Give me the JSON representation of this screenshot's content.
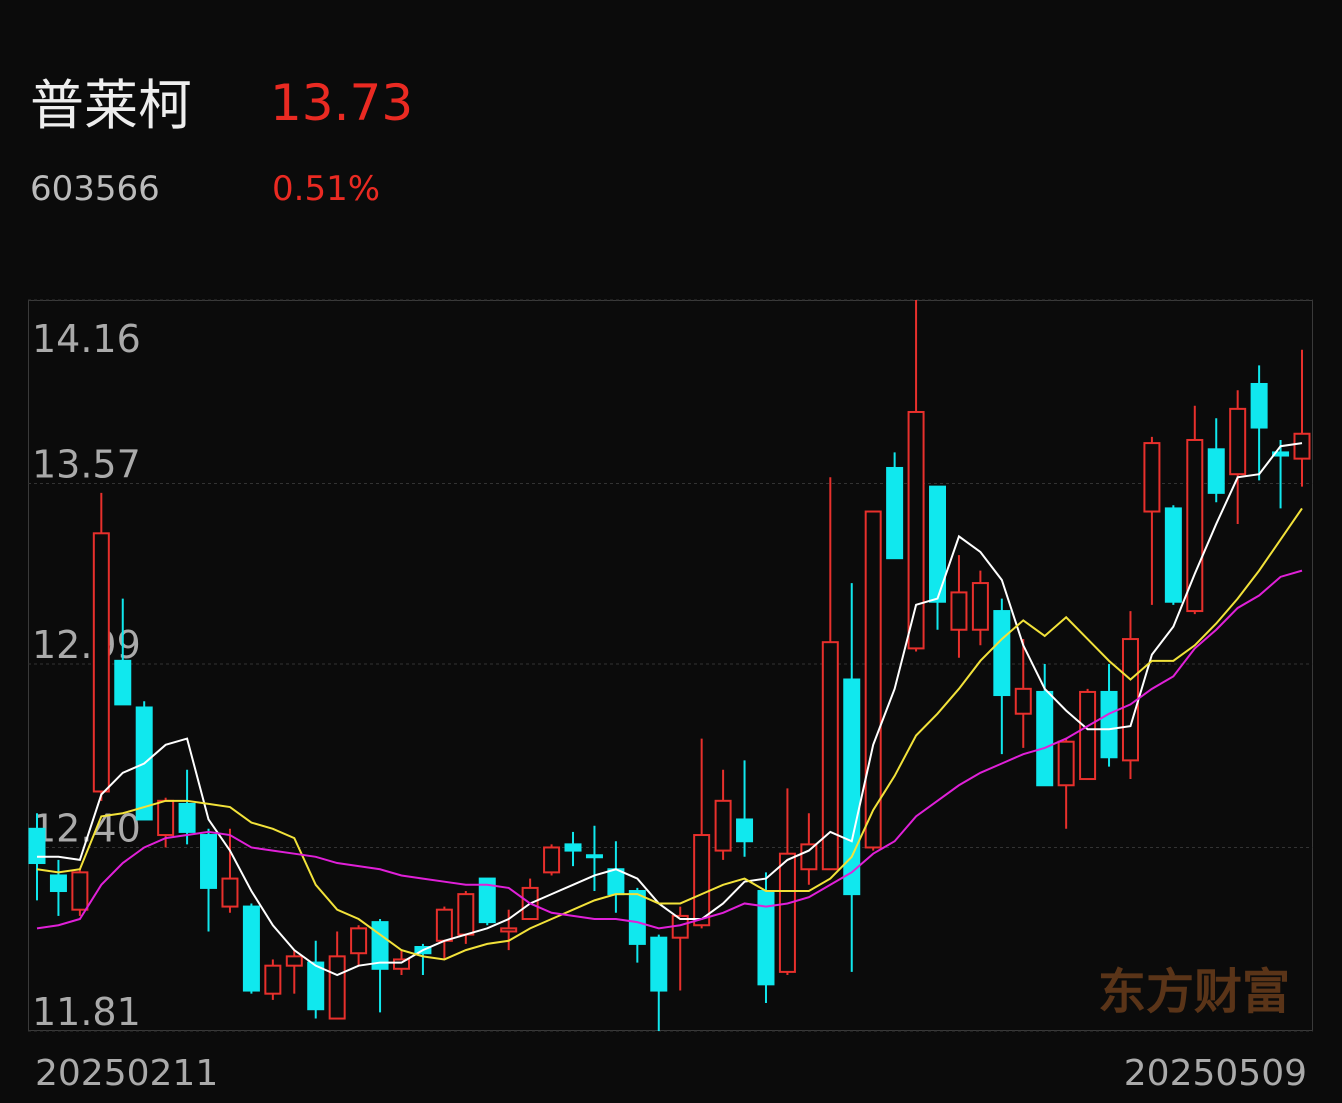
{
  "header": {
    "name": "普莱柯",
    "price": "13.73",
    "code": "603566",
    "change": "0.51%"
  },
  "chart_data": {
    "type": "candlestick",
    "categories": [
      "20250211",
      null,
      null,
      null,
      null,
      null,
      null,
      null,
      null,
      null,
      null,
      null,
      null,
      null,
      null,
      null,
      null,
      null,
      null,
      null,
      null,
      null,
      null,
      null,
      null,
      null,
      null,
      null,
      null,
      null,
      null,
      null,
      null,
      null,
      null,
      null,
      null,
      null,
      null,
      null,
      null,
      null,
      null,
      null,
      null,
      null,
      null,
      null,
      null,
      null,
      null,
      null,
      null,
      null,
      null,
      null,
      null,
      null,
      null,
      "20250509"
    ],
    "open": [
      12.46,
      12.31,
      12.2,
      12.58,
      13.0,
      12.85,
      12.44,
      12.54,
      12.44,
      12.21,
      12.21,
      11.93,
      12.02,
      12.03,
      11.85,
      12.06,
      12.16,
      12.01,
      12.08,
      12.1,
      12.12,
      12.3,
      12.13,
      12.17,
      12.32,
      12.41,
      12.375,
      12.33,
      12.26,
      12.11,
      12.11,
      12.15,
      12.39,
      12.49,
      12.26,
      12.0,
      12.33,
      12.33,
      12.94,
      12.4,
      13.62,
      13.04,
      13.56,
      13.1,
      13.1,
      13.16,
      12.83,
      12.9,
      12.6,
      12.62,
      12.9,
      12.68,
      13.48,
      13.49,
      13.16,
      13.68,
      13.6,
      13.89,
      13.67,
      13.65
    ],
    "high": [
      12.51,
      12.36,
      12.33,
      13.54,
      13.2,
      12.87,
      12.56,
      12.65,
      12.46,
      12.46,
      12.22,
      12.04,
      12.07,
      12.1,
      12.13,
      12.15,
      12.17,
      12.07,
      12.09,
      12.21,
      12.26,
      12.3,
      12.2,
      12.3,
      12.41,
      12.45,
      12.47,
      12.42,
      12.27,
      12.12,
      12.21,
      12.75,
      12.65,
      12.68,
      12.32,
      12.59,
      12.51,
      13.59,
      13.25,
      13.48,
      13.67,
      14.16,
      13.56,
      13.34,
      13.29,
      13.2,
      13.07,
      12.99,
      12.75,
      12.91,
      12.99,
      13.16,
      13.72,
      13.5,
      13.82,
      13.78,
      13.87,
      13.95,
      13.71,
      14.0
    ],
    "low": [
      12.23,
      12.18,
      12.18,
      12.55,
      12.86,
      12.49,
      12.4,
      12.41,
      12.13,
      12.19,
      11.93,
      11.91,
      11.93,
      11.85,
      11.85,
      12.02,
      11.87,
      11.99,
      11.99,
      12.04,
      12.09,
      12.15,
      12.07,
      12.17,
      12.31,
      12.34,
      12.26,
      12.19,
      12.03,
      11.81,
      11.94,
      12.14,
      12.36,
      12.37,
      11.9,
      11.99,
      12.28,
      12.33,
      12.0,
      12.39,
      13.33,
      13.03,
      13.1,
      13.01,
      13.05,
      12.7,
      12.72,
      12.6,
      12.46,
      12.62,
      12.66,
      12.62,
      13.18,
      13.18,
      13.15,
      13.51,
      13.44,
      13.58,
      13.49,
      13.56
    ],
    "close": [
      12.35,
      12.26,
      12.32,
      13.41,
      12.86,
      12.49,
      12.55,
      12.45,
      12.27,
      12.3,
      11.94,
      12.02,
      12.05,
      11.88,
      12.05,
      12.14,
      12.01,
      12.04,
      12.06,
      12.2,
      12.25,
      12.16,
      12.14,
      12.27,
      12.4,
      12.39,
      12.37,
      12.25,
      12.09,
      11.94,
      12.18,
      12.44,
      12.55,
      12.42,
      11.96,
      12.38,
      12.41,
      13.06,
      12.25,
      13.48,
      13.33,
      13.8,
      13.19,
      13.22,
      13.25,
      12.89,
      12.91,
      12.6,
      12.74,
      12.9,
      12.69,
      13.07,
      13.7,
      13.19,
      13.71,
      13.54,
      13.81,
      13.75,
      13.66,
      13.73
    ],
    "up_color": "#e8302c",
    "down_color": "#10e8ee",
    "series": [
      {
        "color": "#ffffff",
        "values": [
          12.37,
          12.37,
          12.36,
          12.57,
          12.64,
          12.67,
          12.73,
          12.75,
          12.49,
          12.39,
          12.26,
          12.15,
          12.07,
          12.02,
          11.99,
          12.02,
          12.03,
          12.03,
          12.07,
          12.1,
          12.12,
          12.14,
          12.17,
          12.22,
          12.25,
          12.28,
          12.31,
          12.33,
          12.3,
          12.22,
          12.17,
          12.17,
          12.22,
          12.29,
          12.3,
          12.36,
          12.39,
          12.45,
          12.42,
          12.73,
          12.91,
          13.18,
          13.2,
          13.4,
          13.35,
          13.26,
          13.05,
          12.91,
          12.84,
          12.78,
          12.78,
          12.79,
          13.02,
          13.11,
          13.28,
          13.44,
          13.59,
          13.6,
          13.69,
          13.7
        ]
      },
      {
        "color": "#f2e23a",
        "values": [
          12.33,
          12.32,
          12.33,
          12.5,
          12.51,
          12.53,
          12.55,
          12.55,
          12.54,
          12.53,
          12.48,
          12.46,
          12.43,
          12.28,
          12.2,
          12.17,
          12.12,
          12.07,
          12.05,
          12.04,
          12.07,
          12.09,
          12.1,
          12.14,
          12.17,
          12.2,
          12.23,
          12.25,
          12.25,
          12.22,
          12.22,
          12.25,
          12.28,
          12.3,
          12.26,
          12.26,
          12.26,
          12.3,
          12.37,
          12.52,
          12.63,
          12.76,
          12.83,
          12.91,
          13.0,
          13.07,
          13.13,
          13.08,
          13.14,
          13.07,
          13.0,
          12.94,
          13.0,
          13.0,
          13.05,
          13.12,
          13.2,
          13.29,
          13.39,
          13.49
        ]
      },
      {
        "color": "#e020d8",
        "values": [
          12.14,
          12.15,
          12.17,
          12.28,
          12.35,
          12.4,
          12.43,
          12.44,
          12.45,
          12.44,
          12.4,
          12.39,
          12.38,
          12.37,
          12.35,
          12.34,
          12.33,
          12.31,
          12.3,
          12.29,
          12.28,
          12.28,
          12.27,
          12.22,
          12.19,
          12.18,
          12.17,
          12.17,
          12.16,
          12.14,
          12.15,
          12.17,
          12.19,
          12.22,
          12.21,
          12.22,
          12.24,
          12.28,
          12.32,
          12.38,
          12.42,
          12.5,
          12.55,
          12.6,
          12.64,
          12.67,
          12.7,
          12.72,
          12.75,
          12.79,
          12.83,
          12.86,
          12.91,
          12.95,
          13.04,
          13.1,
          13.17,
          13.21,
          13.27,
          13.29
        ]
      }
    ],
    "ylim": [
      11.81,
      14.16
    ],
    "yticks": [
      14.16,
      13.57,
      12.99,
      {
        "value": 12.4,
        "label": "12.40"
      },
      11.81
    ],
    "grid": true,
    "watermark": "东方财富"
  }
}
